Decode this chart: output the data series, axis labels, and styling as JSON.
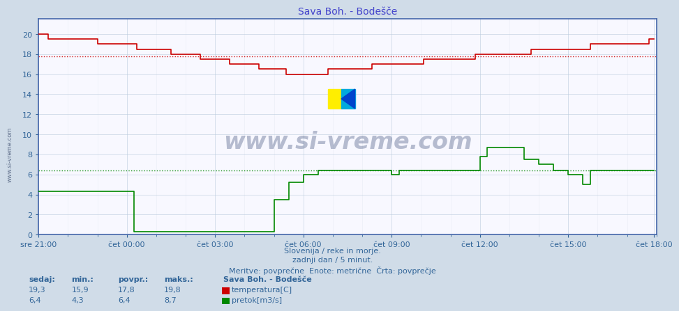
{
  "title": "Sava Boh. - Bodešče",
  "title_color": "#4444cc",
  "bg_color": "#d0dce8",
  "plot_bg_color": "#f8f8ff",
  "grid_color": "#bbbbdd",
  "xlabel_times": [
    "sre 21:00",
    "čet 00:00",
    "čet 03:00",
    "čet 06:00",
    "čet 09:00",
    "čet 12:00",
    "čet 15:00",
    "čet 18:00"
  ],
  "xlabel_color": "#336699",
  "ylabel_color": "#336699",
  "ylim_temp": [
    0,
    22
  ],
  "ylim_flow": [
    0,
    11
  ],
  "yticks_left": [
    0,
    2,
    4,
    6,
    8,
    10,
    12,
    14,
    16,
    18,
    20
  ],
  "temp_color": "#cc0000",
  "flow_color": "#008800",
  "temp_avg_line": 17.8,
  "flow_avg_line": 6.4,
  "watermark_text": "www.si-vreme.com",
  "watermark_color": "#1a3060",
  "footer_line1": "Slovenija / reke in morje.",
  "footer_line2": "zadnji dan / 5 minut.",
  "footer_line3": "Meritve: povprečne  Enote: metrične  Črta: povprečje",
  "footer_color": "#336699",
  "legend_title": "Sava Boh. - Bodešče",
  "stat_headers": [
    "sedaj:",
    "min.:",
    "povpr.:",
    "maks.:"
  ],
  "stat_temp": [
    "19,3",
    "15,9",
    "17,8",
    "19,8"
  ],
  "stat_flow": [
    "6,4",
    "4,3",
    "6,4",
    "8,7"
  ],
  "stat_color": "#336699",
  "label_temp": "temperatura[C]",
  "label_flow": "pretok[m3/s]",
  "n_points": 252
}
